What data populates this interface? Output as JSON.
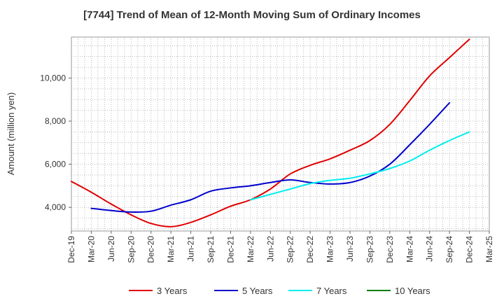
{
  "chart_data": {
    "type": "line",
    "title": "[7744]  Trend of Mean of 12-Month Moving Sum of Ordinary Incomes",
    "xlabel": "",
    "ylabel": "Amount (million yen)",
    "ylim": [
      2900,
      11900
    ],
    "yticks": [
      4000,
      6000,
      8000,
      10000
    ],
    "ytick_labels": [
      "4,000",
      "6,000",
      "8,000",
      "10,000"
    ],
    "x_labels": [
      "Dec-19",
      "Mar-20",
      "Jun-20",
      "Sep-20",
      "Dec-20",
      "Mar-21",
      "Jun-21",
      "Sep-21",
      "Dec-21",
      "Mar-22",
      "Jun-22",
      "Sep-22",
      "Dec-22",
      "Mar-23",
      "Jun-23",
      "Sep-23",
      "Dec-23",
      "Mar-24",
      "Jun-24",
      "Sep-24",
      "Dec-24",
      "Mar-25"
    ],
    "grid": true,
    "legend_position": "bottom",
    "series": [
      {
        "name": "3 Years",
        "color": "#e00000",
        "start_index": 0,
        "values": [
          5200,
          4700,
          4150,
          3650,
          3250,
          3100,
          3300,
          3650,
          4050,
          4350,
          4850,
          5550,
          5950,
          6250,
          6650,
          7100,
          7850,
          8950,
          10100,
          10950,
          11800
        ]
      },
      {
        "name": "5 Years",
        "color": "#0000cc",
        "start_index": 1,
        "values": [
          3950,
          3850,
          3780,
          3820,
          4100,
          4350,
          4750,
          4900,
          5000,
          5150,
          5270,
          5150,
          5080,
          5150,
          5450,
          6000,
          6900,
          7850,
          8850
        ]
      },
      {
        "name": "7 Years",
        "color": "#00eeee",
        "start_index": 9,
        "values": [
          4350,
          4600,
          4850,
          5100,
          5250,
          5350,
          5550,
          5800,
          6150,
          6650,
          7100,
          7500
        ]
      },
      {
        "name": "10 Years",
        "color": "#008000",
        "start_index": 21,
        "values": []
      }
    ]
  }
}
